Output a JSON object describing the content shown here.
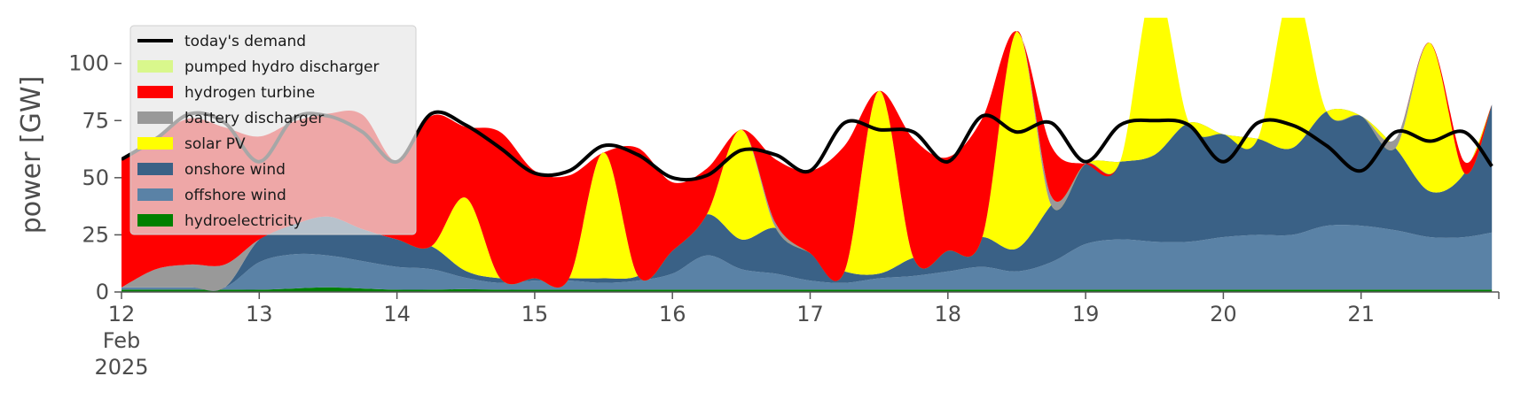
{
  "chart_data": {
    "type": "area",
    "ylabel": "power [GW]",
    "ylim": [
      0,
      120
    ],
    "y_ticks": [
      "0",
      "25",
      "50",
      "75",
      "100"
    ],
    "x_start": "2025-02-12",
    "x_end": "2025-02-22",
    "x_ticks": [
      {
        "day": 12,
        "label": "12",
        "sub1": "Feb",
        "sub2": "2025"
      },
      {
        "day": 13,
        "label": "13"
      },
      {
        "day": 14,
        "label": "14"
      },
      {
        "day": 15,
        "label": "15"
      },
      {
        "day": 16,
        "label": "16"
      },
      {
        "day": 17,
        "label": "17"
      },
      {
        "day": 18,
        "label": "18"
      },
      {
        "day": 19,
        "label": "19"
      },
      {
        "day": 20,
        "label": "20"
      },
      {
        "day": 21,
        "label": "21"
      }
    ],
    "grid": false,
    "legend_position": "top-left",
    "x_days": [
      12.0,
      12.25,
      12.5,
      12.75,
      13.0,
      13.25,
      13.5,
      13.75,
      14.0,
      14.25,
      14.5,
      14.75,
      15.0,
      15.25,
      15.5,
      15.75,
      16.0,
      16.25,
      16.5,
      16.75,
      17.0,
      17.25,
      17.5,
      17.75,
      18.0,
      18.25,
      18.5,
      18.75,
      19.0,
      19.25,
      19.5,
      19.75,
      20.0,
      20.25,
      20.5,
      20.75,
      21.0,
      21.25,
      21.5,
      21.75,
      21.95
    ],
    "stack_series": [
      {
        "name": "hydroelectricity",
        "color": "#008000",
        "values": [
          1,
          1,
          1,
          1,
          1,
          1.5,
          2,
          1.5,
          1,
          1,
          1.2,
          1,
          1,
          1,
          1,
          1,
          1,
          1,
          1,
          1,
          1,
          1,
          1,
          1,
          1,
          1,
          1,
          1,
          1,
          1,
          1,
          1,
          1,
          1,
          1,
          1,
          1,
          1,
          1,
          1,
          1
        ]
      },
      {
        "name": "offshore wind",
        "color": "#5a82a6",
        "values": [
          1,
          1,
          1,
          1,
          12,
          15,
          14,
          12,
          10,
          9,
          5,
          3,
          4,
          4,
          3,
          4,
          7,
          15,
          9,
          7,
          4,
          3,
          5,
          6,
          8,
          10,
          8,
          12,
          20,
          22,
          21,
          21,
          23,
          24,
          24,
          28,
          28,
          26,
          23,
          23,
          25
        ]
      },
      {
        "name": "onshore wind",
        "color": "#3a6186",
        "values": [
          0,
          0,
          0,
          0,
          10,
          13,
          17,
          14,
          12,
          10,
          3,
          2,
          1,
          1,
          2,
          2,
          10,
          18,
          13,
          20,
          12,
          5,
          2,
          8,
          9,
          13,
          10,
          25,
          35,
          34,
          38,
          52,
          45,
          42,
          38,
          50,
          48,
          36,
          20,
          28,
          56
        ]
      },
      {
        "name": "solar PV",
        "color": "#ffff00",
        "values": [
          0,
          0,
          0,
          0,
          0,
          0,
          0,
          0,
          0,
          0,
          32,
          0,
          0,
          0,
          55,
          0,
          0,
          0,
          48,
          0,
          0,
          0,
          80,
          0,
          0,
          0,
          95,
          0,
          0,
          0,
          75,
          0,
          0,
          0,
          70,
          0,
          0,
          0,
          65,
          0,
          0
        ]
      },
      {
        "name": "battery discharger",
        "color": "#999999",
        "values": [
          0,
          8,
          10,
          10,
          0,
          0,
          0,
          0,
          0,
          0,
          0,
          0,
          0,
          0,
          0,
          0,
          0,
          0,
          0,
          2,
          0,
          0,
          0,
          0,
          0,
          0,
          0,
          4,
          0,
          0,
          0,
          0,
          0,
          0,
          0,
          0,
          0,
          4,
          0,
          0,
          0
        ]
      },
      {
        "name": "hydrogen turbine",
        "color": "#ff0000",
        "values": [
          56,
          58,
          64,
          60,
          45,
          45,
          45,
          50,
          34,
          57,
          31,
          64,
          47,
          45,
          0,
          56,
          30,
          20,
          0,
          28,
          36,
          55,
          0,
          52,
          41,
          52,
          0,
          22,
          0,
          0,
          0,
          0,
          0,
          0,
          0,
          0,
          0,
          0,
          0,
          5,
          0
        ]
      },
      {
        "name": "pumped hydro discharger",
        "color": "#d9f78c",
        "values": [
          0,
          0,
          0,
          0,
          0,
          0,
          0,
          0,
          0,
          0,
          0,
          0,
          0,
          0,
          0,
          0,
          0,
          0,
          0,
          0,
          0,
          0,
          0,
          0,
          0,
          0,
          0,
          0,
          0,
          0,
          0,
          0,
          0,
          0,
          0,
          0,
          0,
          0,
          0,
          0,
          0
        ]
      }
    ],
    "line_series": {
      "name": "today's demand",
      "color": "#000000",
      "values": [
        58,
        67,
        78,
        74,
        57,
        76,
        77,
        70,
        57,
        78,
        73,
        63,
        52,
        53,
        64,
        60,
        50,
        51,
        62,
        60,
        53,
        74,
        71,
        70,
        57,
        77,
        70,
        74,
        57,
        73,
        75,
        73,
        57,
        74,
        73,
        64,
        53,
        70,
        66,
        70,
        55
      ]
    },
    "legend": [
      {
        "label": "today's demand",
        "color": "#000000",
        "kind": "line"
      },
      {
        "label": "pumped hydro discharger",
        "color": "#d9f78c",
        "kind": "patch"
      },
      {
        "label": "hydrogen turbine",
        "color": "#ff0000",
        "kind": "patch"
      },
      {
        "label": "battery discharger",
        "color": "#999999",
        "kind": "patch"
      },
      {
        "label": "solar PV",
        "color": "#ffff00",
        "kind": "patch"
      },
      {
        "label": "onshore wind",
        "color": "#3a6186",
        "kind": "patch"
      },
      {
        "label": "offshore wind",
        "color": "#5a82a6",
        "kind": "patch"
      },
      {
        "label": "hydroelectricity",
        "color": "#008000",
        "kind": "patch"
      }
    ]
  }
}
